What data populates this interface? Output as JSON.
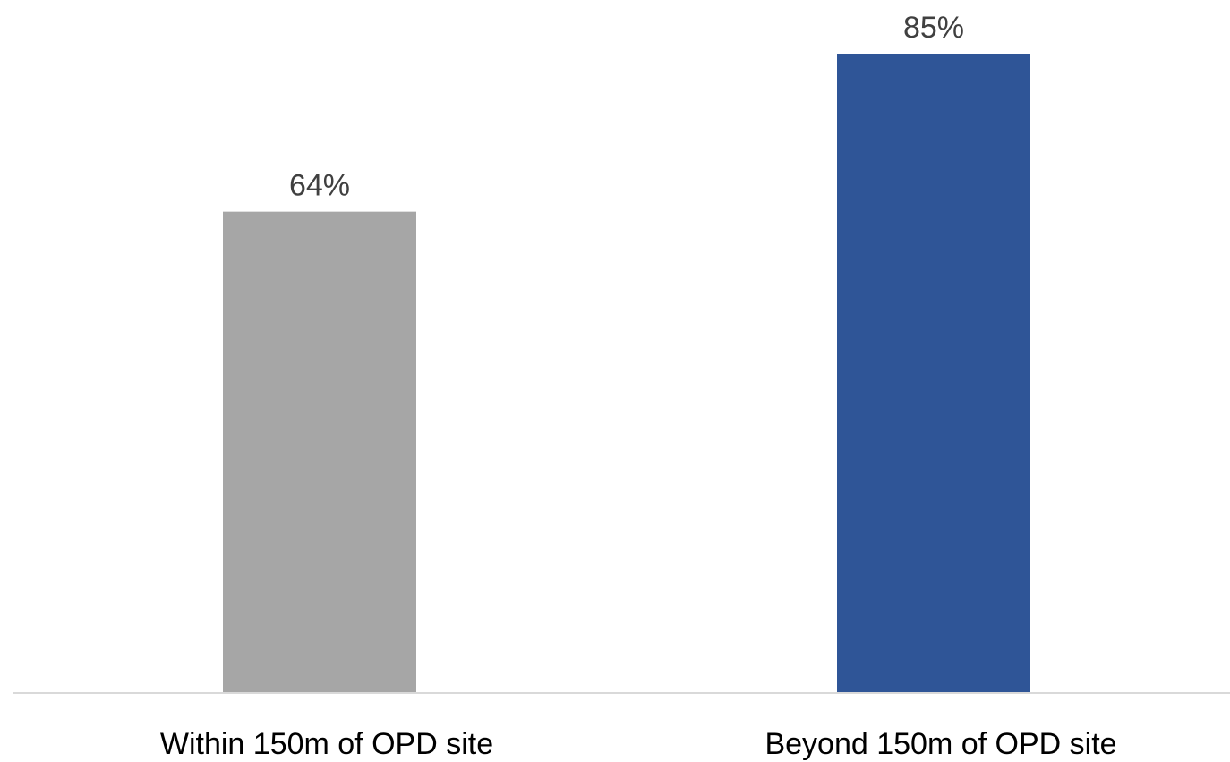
{
  "chart_data": {
    "type": "bar",
    "categories": [
      "Within 150m of OPD site",
      "Beyond 150m of OPD site"
    ],
    "values": [
      64,
      85
    ],
    "data_labels": [
      "64%",
      "85%"
    ],
    "colors": [
      "#a6a6a6",
      "#2f5597"
    ],
    "ylim": [
      0,
      85
    ],
    "grid": false,
    "legend": "none",
    "baseline_color": "#d9d9d9"
  }
}
